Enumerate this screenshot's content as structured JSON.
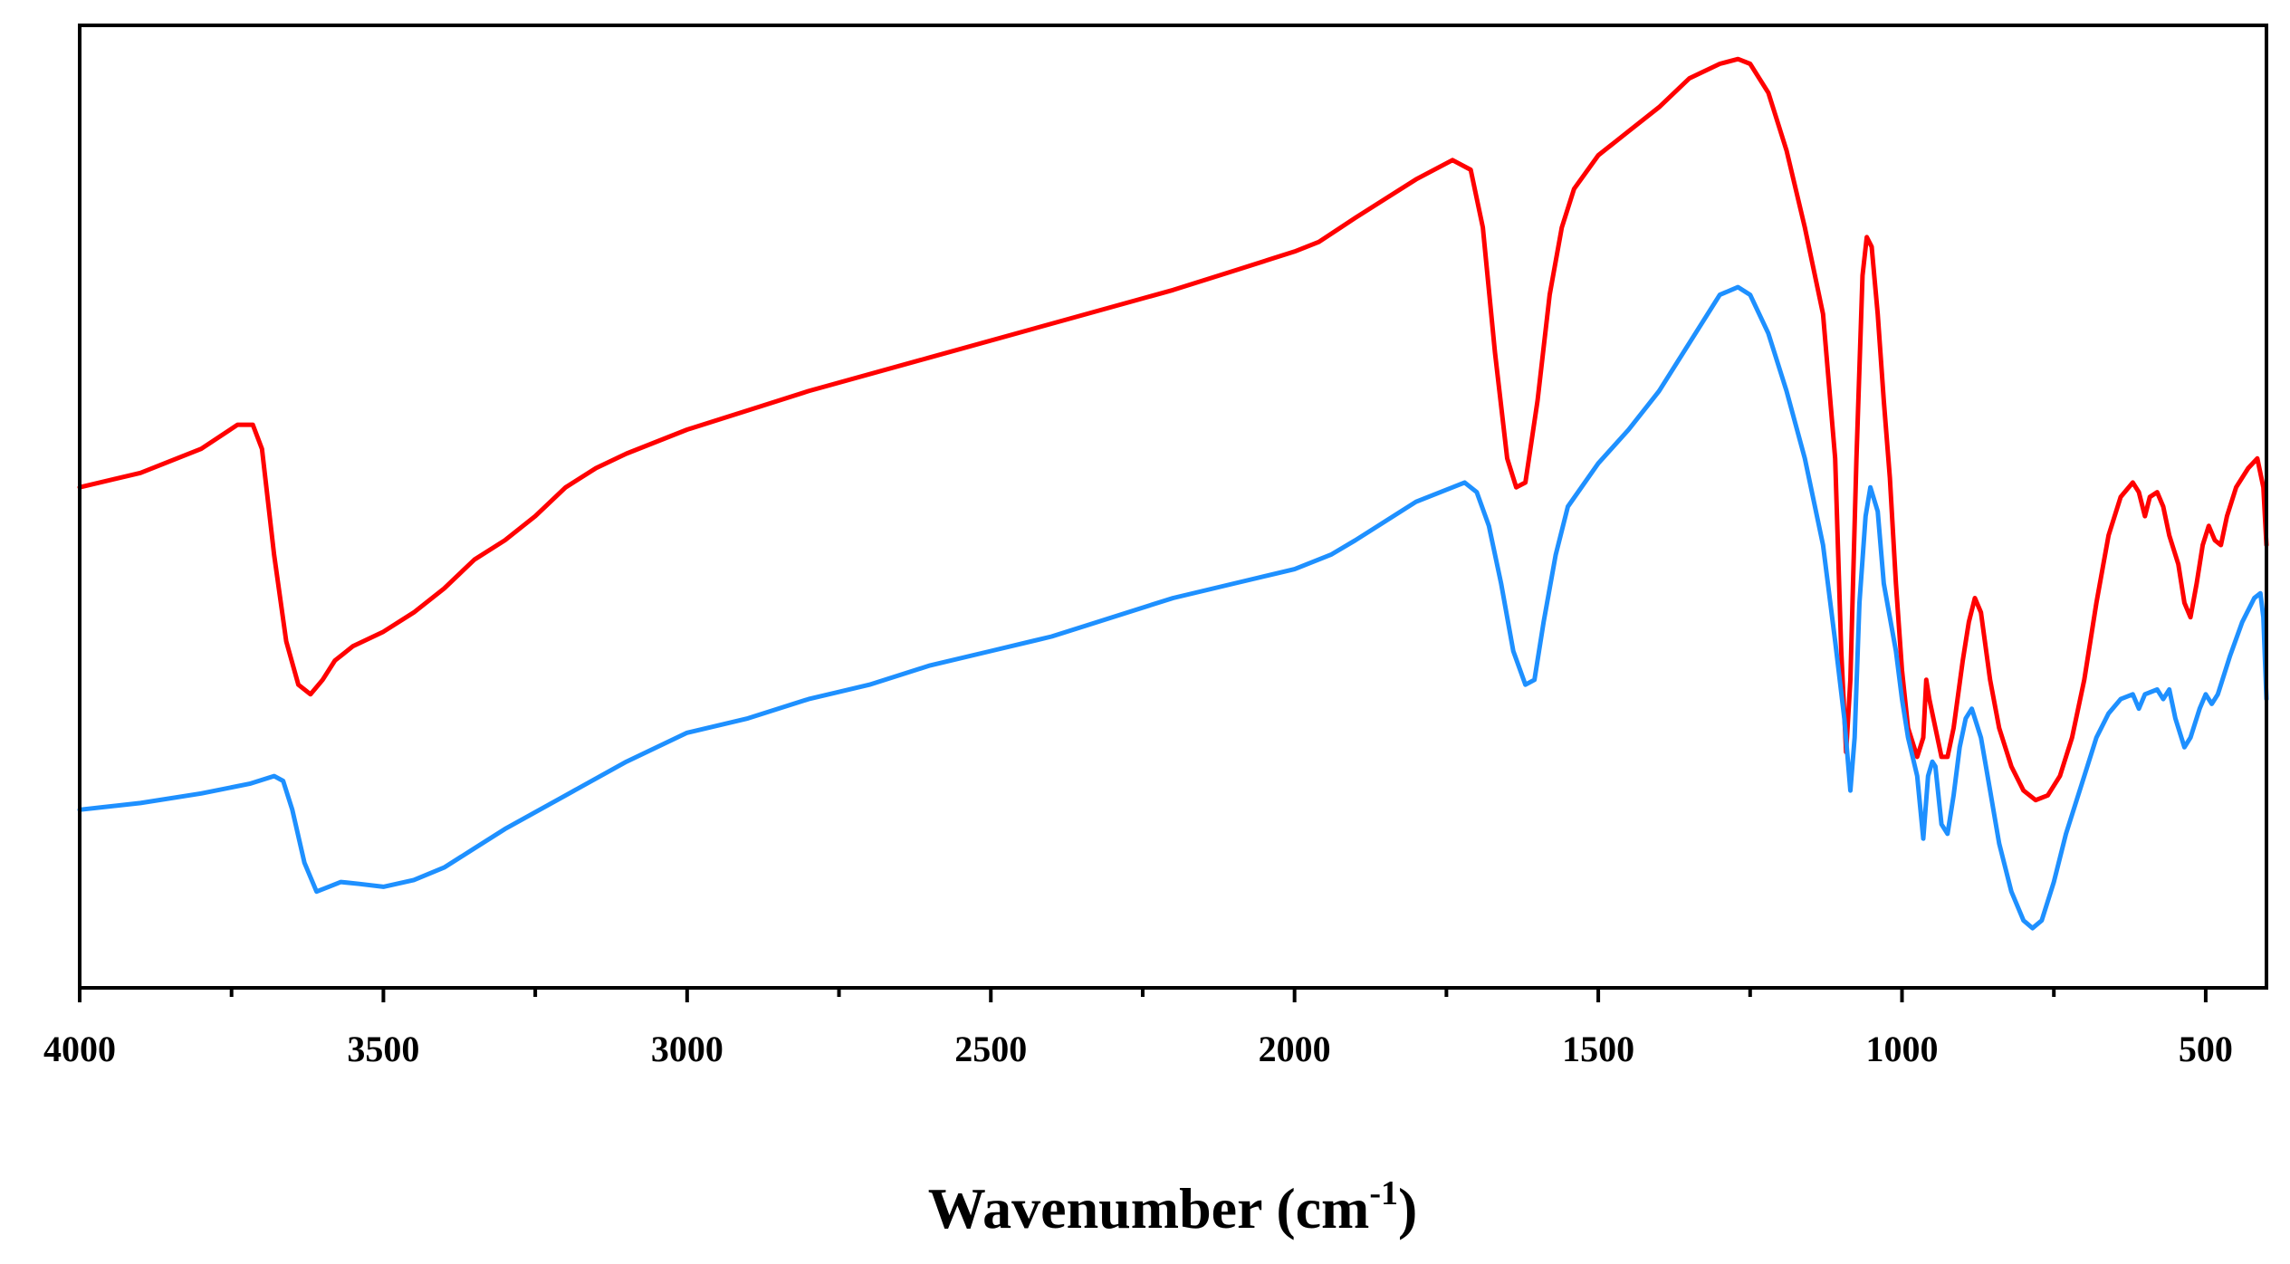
{
  "chart_data": {
    "type": "line",
    "title": "",
    "xlabel": "Wavenumber (cm",
    "xlabel_superscript": "-1",
    "xlabel_suffix": ")",
    "ylabel": "",
    "xlim": [
      4000,
      400
    ],
    "ylim": [
      0,
      100
    ],
    "x_reversed": true,
    "grid": false,
    "legend": "none",
    "x_ticks": [
      {
        "value": 4000,
        "label": "4000"
      },
      {
        "value": 3500,
        "label": "3500"
      },
      {
        "value": 3000,
        "label": "3000"
      },
      {
        "value": 2500,
        "label": "2500"
      },
      {
        "value": 2000,
        "label": "2000"
      },
      {
        "value": 1500,
        "label": "1500"
      },
      {
        "value": 1000,
        "label": "1000"
      },
      {
        "value": 500,
        "label": "500"
      }
    ],
    "x_minor_ticks": [
      3750,
      3250,
      2750,
      2250,
      1750,
      1250,
      750
    ],
    "series": [
      {
        "name": "red spectrum",
        "color": "#ff0000",
        "points": [
          [
            4000,
            52
          ],
          [
            3900,
            53.5
          ],
          [
            3800,
            56
          ],
          [
            3740,
            58.5
          ],
          [
            3715,
            58.5
          ],
          [
            3700,
            56
          ],
          [
            3680,
            45
          ],
          [
            3660,
            36
          ],
          [
            3640,
            31.5
          ],
          [
            3620,
            30.5
          ],
          [
            3600,
            32
          ],
          [
            3580,
            34
          ],
          [
            3550,
            35.5
          ],
          [
            3500,
            37
          ],
          [
            3450,
            39
          ],
          [
            3400,
            41.5
          ],
          [
            3350,
            44.5
          ],
          [
            3300,
            46.5
          ],
          [
            3250,
            49
          ],
          [
            3200,
            52
          ],
          [
            3150,
            54
          ],
          [
            3100,
            55.5
          ],
          [
            3000,
            58
          ],
          [
            2900,
            60
          ],
          [
            2800,
            62
          ],
          [
            2600,
            65.5
          ],
          [
            2400,
            69
          ],
          [
            2200,
            72.5
          ],
          [
            2100,
            74.5
          ],
          [
            2000,
            76.5
          ],
          [
            1960,
            77.5
          ],
          [
            1900,
            80
          ],
          [
            1800,
            84
          ],
          [
            1740,
            86
          ],
          [
            1710,
            85
          ],
          [
            1690,
            79
          ],
          [
            1670,
            66
          ],
          [
            1650,
            55
          ],
          [
            1635,
            52
          ],
          [
            1620,
            52.5
          ],
          [
            1600,
            61
          ],
          [
            1580,
            72
          ],
          [
            1560,
            79
          ],
          [
            1540,
            83
          ],
          [
            1500,
            86.5
          ],
          [
            1450,
            89
          ],
          [
            1400,
            91.5
          ],
          [
            1350,
            94.5
          ],
          [
            1300,
            96
          ],
          [
            1270,
            96.5
          ],
          [
            1250,
            96
          ],
          [
            1220,
            93
          ],
          [
            1190,
            87
          ],
          [
            1160,
            79
          ],
          [
            1130,
            70
          ],
          [
            1110,
            55
          ],
          [
            1100,
            35
          ],
          [
            1092,
            24.5
          ],
          [
            1085,
            32
          ],
          [
            1075,
            55
          ],
          [
            1065,
            74
          ],
          [
            1058,
            78
          ],
          [
            1050,
            77
          ],
          [
            1040,
            70
          ],
          [
            1030,
            61
          ],
          [
            1020,
            53
          ],
          [
            1010,
            42
          ],
          [
            1000,
            33
          ],
          [
            990,
            27
          ],
          [
            975,
            24
          ],
          [
            965,
            26
          ],
          [
            960,
            32
          ],
          [
            955,
            30
          ],
          [
            945,
            27
          ],
          [
            935,
            24
          ],
          [
            925,
            24
          ],
          [
            915,
            27
          ],
          [
            900,
            34
          ],
          [
            890,
            38
          ],
          [
            880,
            40.5
          ],
          [
            870,
            39
          ],
          [
            855,
            32
          ],
          [
            840,
            27
          ],
          [
            820,
            23
          ],
          [
            800,
            20.5
          ],
          [
            780,
            19.5
          ],
          [
            760,
            20
          ],
          [
            740,
            22
          ],
          [
            720,
            26
          ],
          [
            700,
            32
          ],
          [
            680,
            40
          ],
          [
            660,
            47
          ],
          [
            640,
            51
          ],
          [
            620,
            52.5
          ],
          [
            610,
            51.5
          ],
          [
            600,
            49
          ],
          [
            592,
            51
          ],
          [
            580,
            51.5
          ],
          [
            570,
            50
          ],
          [
            560,
            47
          ],
          [
            545,
            44
          ],
          [
            535,
            40
          ],
          [
            525,
            38.5
          ],
          [
            515,
            42
          ],
          [
            505,
            46
          ],
          [
            495,
            48
          ],
          [
            485,
            46.5
          ],
          [
            475,
            46
          ],
          [
            465,
            49
          ],
          [
            450,
            52
          ],
          [
            430,
            54
          ],
          [
            415,
            55
          ],
          [
            405,
            52
          ],
          [
            400,
            46
          ]
        ]
      },
      {
        "name": "blue spectrum",
        "color": "#1e90ff",
        "points": [
          [
            4000,
            18.5
          ],
          [
            3900,
            19.2
          ],
          [
            3800,
            20.2
          ],
          [
            3720,
            21.2
          ],
          [
            3680,
            22
          ],
          [
            3665,
            21.5
          ],
          [
            3650,
            18.5
          ],
          [
            3630,
            13
          ],
          [
            3610,
            10
          ],
          [
            3590,
            10.5
          ],
          [
            3570,
            11
          ],
          [
            3540,
            10.8
          ],
          [
            3500,
            10.5
          ],
          [
            3450,
            11.2
          ],
          [
            3400,
            12.5
          ],
          [
            3350,
            14.5
          ],
          [
            3300,
            16.5
          ],
          [
            3200,
            20
          ],
          [
            3100,
            23.5
          ],
          [
            3000,
            26.5
          ],
          [
            2900,
            28
          ],
          [
            2800,
            30
          ],
          [
            2700,
            31.5
          ],
          [
            2600,
            33.5
          ],
          [
            2500,
            35
          ],
          [
            2400,
            36.5
          ],
          [
            2350,
            37.5
          ],
          [
            2300,
            38.5
          ],
          [
            2200,
            40.5
          ],
          [
            2100,
            42
          ],
          [
            2000,
            43.5
          ],
          [
            1940,
            45
          ],
          [
            1900,
            46.5
          ],
          [
            1800,
            50.5
          ],
          [
            1720,
            52.5
          ],
          [
            1700,
            51.5
          ],
          [
            1680,
            48
          ],
          [
            1660,
            42
          ],
          [
            1640,
            35
          ],
          [
            1620,
            31.5
          ],
          [
            1605,
            32
          ],
          [
            1590,
            38
          ],
          [
            1570,
            45
          ],
          [
            1550,
            50
          ],
          [
            1500,
            54.5
          ],
          [
            1450,
            58
          ],
          [
            1400,
            62
          ],
          [
            1350,
            67
          ],
          [
            1300,
            72
          ],
          [
            1270,
            72.8
          ],
          [
            1250,
            72
          ],
          [
            1220,
            68
          ],
          [
            1190,
            62
          ],
          [
            1160,
            55
          ],
          [
            1130,
            46
          ],
          [
            1110,
            36
          ],
          [
            1095,
            28
          ],
          [
            1085,
            20.5
          ],
          [
            1078,
            26
          ],
          [
            1070,
            40
          ],
          [
            1060,
            49
          ],
          [
            1052,
            52
          ],
          [
            1040,
            49.5
          ],
          [
            1030,
            42
          ],
          [
            1010,
            35
          ],
          [
            1000,
            30
          ],
          [
            990,
            26
          ],
          [
            975,
            22
          ],
          [
            965,
            15.5
          ],
          [
            957,
            22
          ],
          [
            950,
            23.5
          ],
          [
            945,
            23
          ],
          [
            935,
            17
          ],
          [
            925,
            16
          ],
          [
            915,
            20
          ],
          [
            905,
            25
          ],
          [
            895,
            28
          ],
          [
            885,
            29
          ],
          [
            870,
            26
          ],
          [
            855,
            20.5
          ],
          [
            840,
            15
          ],
          [
            820,
            10
          ],
          [
            800,
            7
          ],
          [
            785,
            6.2
          ],
          [
            770,
            7
          ],
          [
            750,
            11
          ],
          [
            730,
            16
          ],
          [
            700,
            22
          ],
          [
            680,
            26
          ],
          [
            660,
            28.5
          ],
          [
            640,
            30
          ],
          [
            620,
            30.5
          ],
          [
            610,
            29
          ],
          [
            600,
            30.5
          ],
          [
            580,
            31
          ],
          [
            570,
            30
          ],
          [
            560,
            31
          ],
          [
            550,
            28
          ],
          [
            535,
            25
          ],
          [
            525,
            26
          ],
          [
            510,
            29
          ],
          [
            500,
            30.5
          ],
          [
            490,
            29.5
          ],
          [
            480,
            30.5
          ],
          [
            460,
            34.5
          ],
          [
            440,
            38
          ],
          [
            420,
            40.5
          ],
          [
            410,
            41
          ],
          [
            405,
            38.5
          ],
          [
            400,
            30
          ]
        ]
      }
    ]
  }
}
